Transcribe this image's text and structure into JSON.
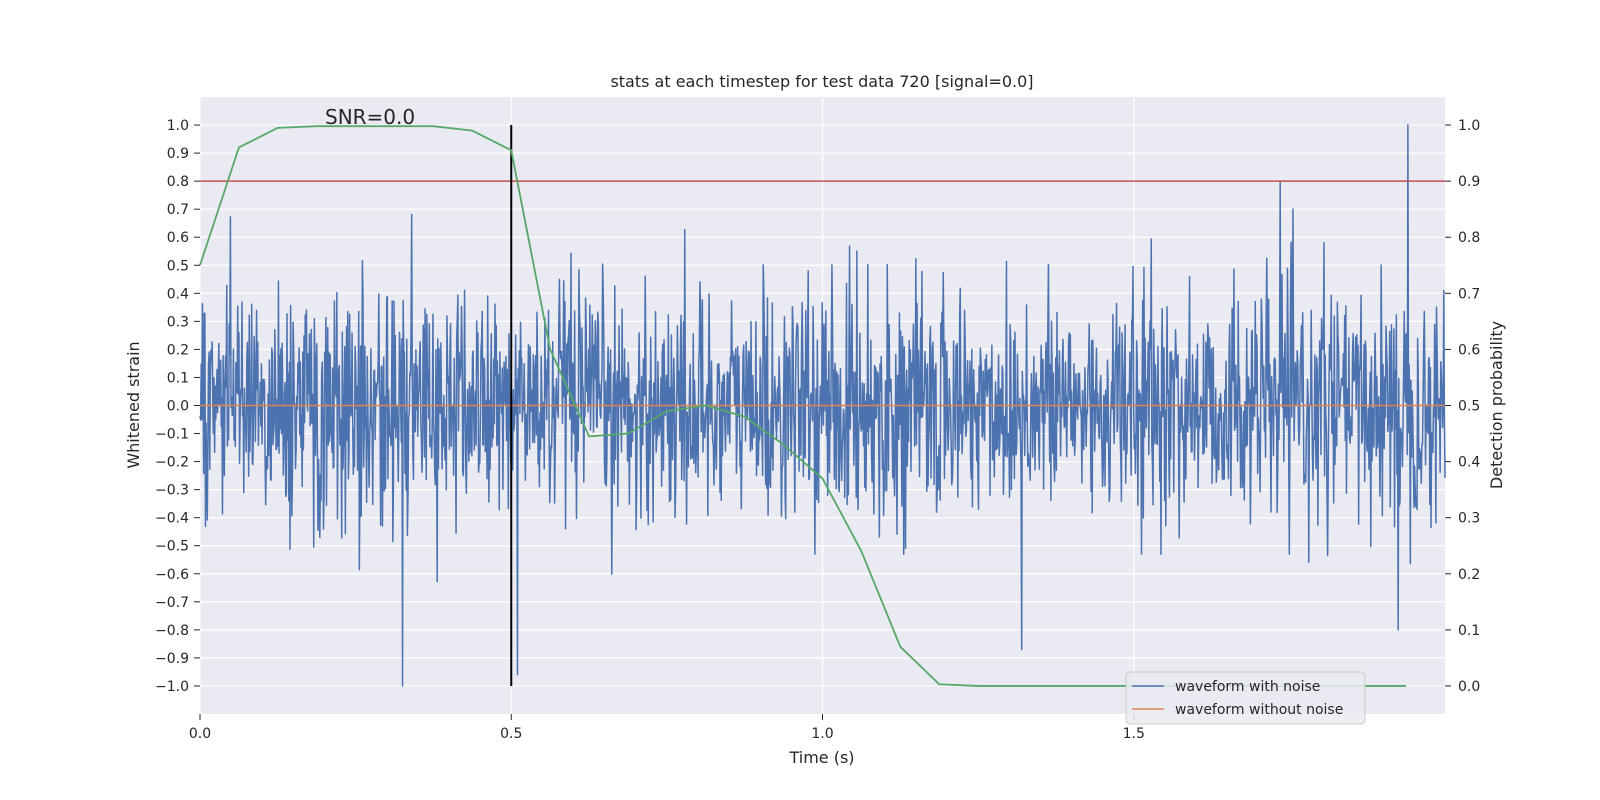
{
  "chart_data": {
    "type": "line",
    "title": "stats at each timestep for test data 720 [signal=0.0]",
    "xlabel": "Time (s)",
    "ylabel_left": "Whitened strain",
    "ylabel_right": "Detection probability",
    "annotation": "SNR=0.0",
    "xlim": [
      0.0,
      2.0
    ],
    "ylim_left": [
      -1.1,
      1.1
    ],
    "ylim_right": [
      -0.05,
      1.05
    ],
    "x_ticks": [
      0.0,
      0.5,
      1.0,
      1.5
    ],
    "x_tick_labels": [
      "0.0",
      "0.5",
      "1.0",
      "1.5"
    ],
    "y_left_ticks": [
      1.0,
      0.9,
      0.8,
      0.7,
      0.6,
      0.5,
      0.4,
      0.3,
      0.2,
      0.1,
      0.0,
      -0.1,
      -0.2,
      -0.3,
      -0.4,
      -0.5,
      -0.6,
      -0.7,
      -0.8,
      -0.9,
      -1.0
    ],
    "y_left_tick_labels": [
      "1.0",
      "0.9",
      "0.8",
      "0.7",
      "0.6",
      "0.5",
      "0.4",
      "0.3",
      "0.2",
      "0.1",
      "0.0",
      "−0.1",
      "−0.2",
      "−0.3",
      "−0.4",
      "−0.5",
      "−0.6",
      "−0.7",
      "−0.8",
      "−0.9",
      "−1.0"
    ],
    "y_right_ticks": [
      1.0,
      0.9,
      0.8,
      0.7,
      0.6,
      0.5,
      0.4,
      0.3,
      0.2,
      0.1,
      0.0
    ],
    "y_right_tick_labels": [
      "1.0",
      "0.9",
      "0.8",
      "0.7",
      "0.6",
      "0.5",
      "0.4",
      "0.3",
      "0.2",
      "0.1",
      "0.0"
    ],
    "series": [
      {
        "name": "waveform with noise",
        "axis": "left",
        "color": "#4c72b0",
        "kind": "noise",
        "samples": 2048,
        "x_range": [
          0.0,
          2.0
        ],
        "notable_peaks": [
          {
            "x": 0.325,
            "y": -1.0
          },
          {
            "x": 0.51,
            "y": -0.96
          },
          {
            "x": 1.32,
            "y": -0.87
          },
          {
            "x": 1.735,
            "y": 0.8
          },
          {
            "x": 1.925,
            "y": -0.8
          },
          {
            "x": 1.94,
            "y": 1.0
          }
        ]
      },
      {
        "name": "waveform without noise",
        "axis": "left",
        "color": "#dd8452",
        "x": [
          0.0,
          2.0
        ],
        "y": [
          0.0,
          0.0
        ]
      },
      {
        "name": "Detection probability",
        "axis": "right",
        "color": "#55a868",
        "x": [
          0.0,
          0.0625,
          0.125,
          0.1875,
          0.25,
          0.3125,
          0.375,
          0.4375,
          0.5,
          0.5625,
          0.625,
          0.6875,
          0.75,
          0.8125,
          0.875,
          0.9375,
          1.0,
          1.0625,
          1.125,
          1.1875,
          1.25,
          1.3125,
          1.375,
          1.4375,
          1.5,
          1.5625,
          1.625,
          1.6875,
          1.75,
          1.8125,
          1.875,
          1.9375
        ],
        "y": [
          0.75,
          0.96,
          0.995,
          0.998,
          0.998,
          0.998,
          0.998,
          0.99,
          0.955,
          0.6,
          0.445,
          0.45,
          0.49,
          0.5,
          0.48,
          0.43,
          0.37,
          0.24,
          0.07,
          0.003,
          0.0,
          0.0,
          0.0,
          0.0,
          0.0,
          0.0,
          0.0,
          0.0,
          0.0,
          0.0,
          0.0,
          0.0
        ]
      }
    ],
    "threshold_line": {
      "axis": "left",
      "y": 0.8,
      "color": "#c44e52"
    },
    "vertical_marker": {
      "x": 0.5,
      "y_from": -1.0,
      "y_to": 1.0,
      "color": "#000000"
    },
    "legend": {
      "position": "lower-right",
      "entries": [
        {
          "label": "waveform with noise",
          "color": "#4c72b0"
        },
        {
          "label": "waveform without noise",
          "color": "#dd8452"
        }
      ]
    },
    "grid": true,
    "background": "#eaeaf2"
  }
}
